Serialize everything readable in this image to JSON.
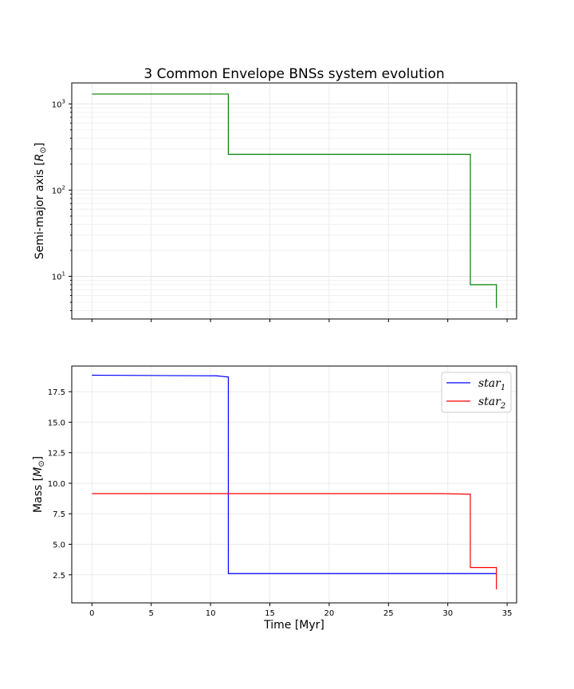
{
  "chart_data": [
    {
      "type": "line",
      "title": "3 Common Envelope BNSs system evolution",
      "ylabel": "Semi-major axis [R⊙]",
      "ylabel_parts": {
        "base": "Semi-major axis [",
        "symbol": "R",
        "sub": "⊙",
        "end": "]"
      },
      "xlim": [
        -1.7,
        35.8
      ],
      "ylim": [
        3.2,
        1750
      ],
      "yscale": "log",
      "grid": true,
      "yticks": [
        {
          "value": 10,
          "base": "10",
          "exp": "1"
        },
        {
          "value": 100,
          "base": "10",
          "exp": "2"
        },
        {
          "value": 1000,
          "base": "10",
          "exp": "3"
        }
      ],
      "series": [
        {
          "color": "#008000",
          "x": [
            0,
            11.5,
            11.5,
            31.9,
            31.9,
            34.1,
            34.1
          ],
          "y": [
            1300,
            1300,
            260,
            260,
            8,
            8,
            4.3
          ]
        }
      ]
    },
    {
      "type": "line",
      "xlabel": "Time [Myr]",
      "ylabel": "Mass [M⊙]",
      "ylabel_parts": {
        "base": "Mass [",
        "symbol": "M",
        "sub": "⊙",
        "end": "]"
      },
      "xlim": [
        -1.7,
        35.8
      ],
      "ylim": [
        0.2,
        19.6
      ],
      "grid": true,
      "xticks": [
        0,
        5,
        10,
        15,
        20,
        25,
        30,
        35
      ],
      "yticks": [
        "2.5",
        "5.0",
        "7.5",
        "10.0",
        "12.5",
        "15.0",
        "17.5"
      ],
      "legend_position": "top-right",
      "series": [
        {
          "name": "star1",
          "label_base": "star",
          "label_sub": "1",
          "color": "#0000ff",
          "x": [
            0,
            10.5,
            11.5,
            11.5,
            34.1
          ],
          "y": [
            18.85,
            18.8,
            18.7,
            2.6,
            2.6
          ]
        },
        {
          "name": "star2",
          "label_base": "star",
          "label_sub": "2",
          "color": "#ff0000",
          "x": [
            0,
            29.5,
            31.9,
            31.9,
            34.1,
            34.1
          ],
          "y": [
            9.15,
            9.15,
            9.1,
            3.1,
            3.1,
            1.3
          ]
        }
      ]
    }
  ]
}
